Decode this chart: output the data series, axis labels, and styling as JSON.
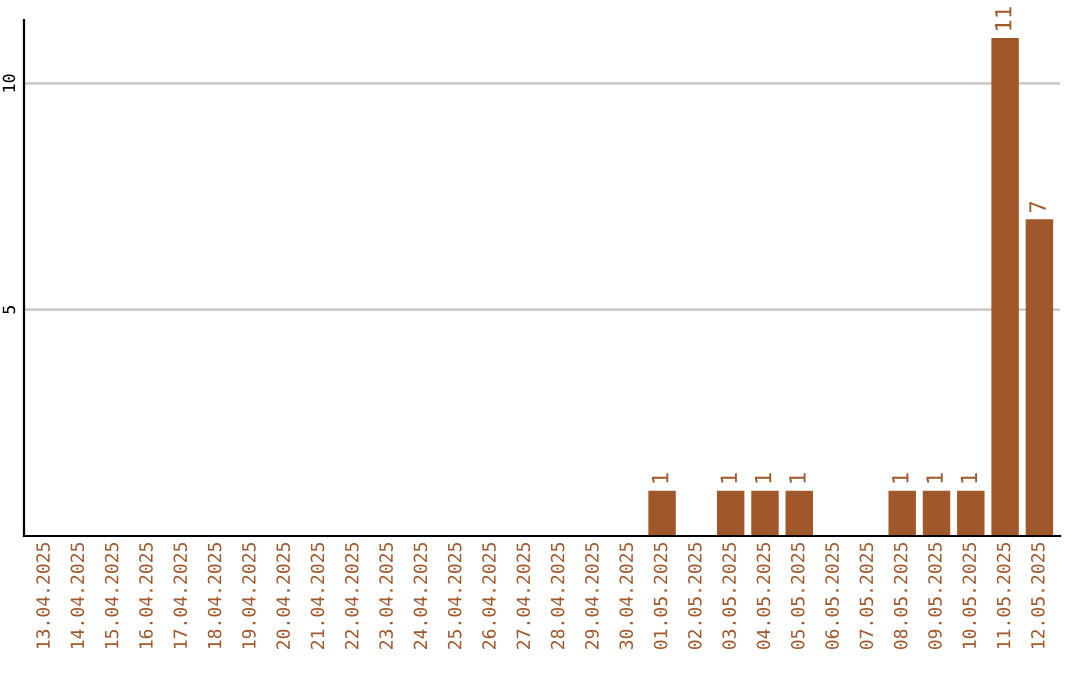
{
  "chart_data": {
    "type": "bar",
    "categories": [
      "13.04.2025",
      "14.04.2025",
      "15.04.2025",
      "16.04.2025",
      "17.04.2025",
      "18.04.2025",
      "19.04.2025",
      "20.04.2025",
      "21.04.2025",
      "22.04.2025",
      "23.04.2025",
      "24.04.2025",
      "25.04.2025",
      "26.04.2025",
      "27.04.2025",
      "28.04.2025",
      "29.04.2025",
      "30.04.2025",
      "01.05.2025",
      "02.05.2025",
      "03.05.2025",
      "04.05.2025",
      "05.05.2025",
      "06.05.2025",
      "07.05.2025",
      "08.05.2025",
      "09.05.2025",
      "10.05.2025",
      "11.05.2025",
      "12.05.2025"
    ],
    "values": [
      0,
      0,
      0,
      0,
      0,
      0,
      0,
      0,
      0,
      0,
      0,
      0,
      0,
      0,
      0,
      0,
      0,
      0,
      1,
      0,
      1,
      1,
      1,
      0,
      0,
      1,
      1,
      1,
      11,
      7
    ],
    "value_labels": [
      null,
      null,
      null,
      null,
      null,
      null,
      null,
      null,
      null,
      null,
      null,
      null,
      null,
      null,
      null,
      null,
      null,
      null,
      "1",
      null,
      "1",
      "1",
      "1",
      null,
      null,
      "1",
      "1",
      "1",
      "11",
      "7"
    ],
    "color": "#a0572a",
    "ylim": [
      0,
      11.4
    ],
    "yticks": [
      5,
      10
    ],
    "grid": "y",
    "legend": false
  }
}
